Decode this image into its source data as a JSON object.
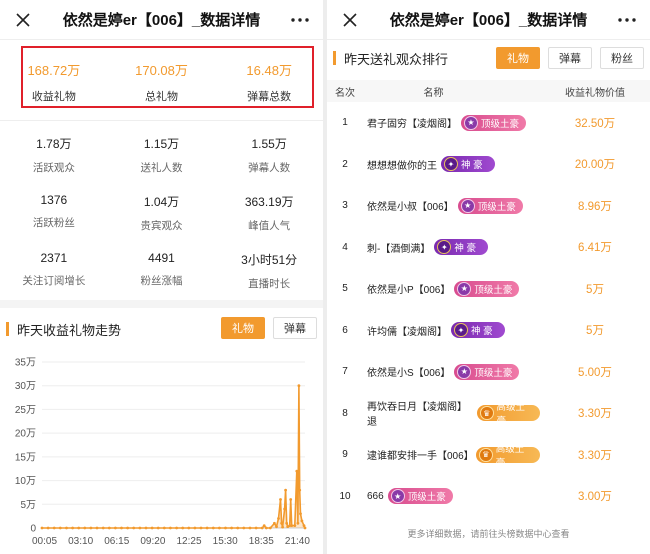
{
  "left": {
    "title": "依然是婷er【006】_数据详情",
    "summary": [
      {
        "value": "168.72万",
        "label": "收益礼物"
      },
      {
        "value": "170.08万",
        "label": "总礼物"
      },
      {
        "value": "16.48万",
        "label": "弹幕总数"
      }
    ],
    "stats": [
      {
        "value": "1.78万",
        "label": "活跃观众"
      },
      {
        "value": "1.15万",
        "label": "送礼人数"
      },
      {
        "value": "1.55万",
        "label": "弹幕人数"
      },
      {
        "value": "1376",
        "label": "活跃粉丝"
      },
      {
        "value": "1.04万",
        "label": "贵宾观众"
      },
      {
        "value": "363.19万",
        "label": "峰值人气"
      },
      {
        "value": "2371",
        "label": "关注订阅增长"
      },
      {
        "value": "4491",
        "label": "粉丝涨幅"
      },
      {
        "value": "3小时51分",
        "label": "直播时长"
      }
    ],
    "trend_title": "昨天收益礼物走势",
    "tab_gift": "礼物",
    "tab_danmu": "弹幕"
  },
  "right": {
    "title": "依然是婷er【006】_数据详情",
    "section_title": "昨天送礼观众排行",
    "tab_gift": "礼物",
    "tab_danmu": "弹幕",
    "tab_fans": "粉丝",
    "col_rank": "名次",
    "col_name": "名称",
    "col_value": "收益礼物价值",
    "rows": [
      {
        "rank": "1",
        "name": "君子固穷【凌烟阁】",
        "badge": "顶级土豪",
        "badge_type": "top",
        "value": "32.50万"
      },
      {
        "rank": "2",
        "name": "想想想做你的王",
        "badge": "神 豪",
        "badge_type": "god",
        "value": "20.00万"
      },
      {
        "rank": "3",
        "name": "依然是小叔【006】",
        "badge": "顶级土豪",
        "badge_type": "top",
        "value": "8.96万"
      },
      {
        "rank": "4",
        "name": "刺-【酒倒满】",
        "badge": "神 豪",
        "badge_type": "god",
        "value": "6.41万"
      },
      {
        "rank": "5",
        "name": "依然是小P【006】",
        "badge": "顶级土豪",
        "badge_type": "top",
        "value": "5万"
      },
      {
        "rank": "6",
        "name": "许均儒【凌烟阁】",
        "badge": "神 豪",
        "badge_type": "god",
        "value": "5万"
      },
      {
        "rank": "7",
        "name": "依然是小S【006】",
        "badge": "顶级土豪",
        "badge_type": "top",
        "value": "5.00万"
      },
      {
        "rank": "8",
        "name": "再饮吞日月【凌烟阁】退",
        "badge": "高级土豪",
        "badge_type": "high",
        "value": "3.30万"
      },
      {
        "rank": "9",
        "name": "逮谁都安排一手【006】",
        "badge": "高级土豪",
        "badge_type": "high",
        "value": "3.30万"
      },
      {
        "rank": "10",
        "name": "666",
        "badge": "顶级土豪",
        "badge_type": "top",
        "value": "3.00万"
      }
    ],
    "footnote": "更多详细数据，请前往头榜数据中心查看"
  },
  "colors": {
    "accent": "#f29a2e",
    "highlight_box": "#e0202a"
  },
  "chart_data": {
    "type": "area",
    "x_ticks": [
      "00:05",
      "03:10",
      "06:15",
      "09:20",
      "12:25",
      "15:30",
      "18:35",
      "21:40"
    ],
    "y_ticks": [
      "0",
      "5万",
      "10万",
      "15万",
      "20万",
      "25万",
      "30万",
      "35万"
    ],
    "ylim": [
      0,
      350000
    ],
    "series": [
      {
        "values": [
          [
            0,
            0
          ],
          [
            30,
            0
          ],
          [
            60,
            0
          ],
          [
            90,
            0
          ],
          [
            120,
            0
          ],
          [
            150,
            0
          ],
          [
            180,
            0
          ],
          [
            210,
            0
          ],
          [
            240,
            0
          ],
          [
            270,
            0
          ],
          [
            300,
            0
          ],
          [
            330,
            0
          ],
          [
            360,
            0
          ],
          [
            390,
            0
          ],
          [
            420,
            0
          ],
          [
            450,
            0
          ],
          [
            480,
            0
          ],
          [
            510,
            0
          ],
          [
            540,
            0
          ],
          [
            570,
            0
          ],
          [
            600,
            0
          ],
          [
            630,
            0
          ],
          [
            660,
            0
          ],
          [
            690,
            0
          ],
          [
            720,
            0
          ],
          [
            750,
            0
          ],
          [
            780,
            0
          ],
          [
            810,
            0
          ],
          [
            840,
            0
          ],
          [
            870,
            0
          ],
          [
            900,
            0
          ],
          [
            930,
            0
          ],
          [
            960,
            0
          ],
          [
            990,
            0
          ],
          [
            1020,
            0
          ],
          [
            1050,
            0
          ],
          [
            1080,
            0
          ],
          [
            1090,
            5000
          ],
          [
            1100,
            0
          ],
          [
            1120,
            0
          ],
          [
            1140,
            10000
          ],
          [
            1150,
            3000
          ],
          [
            1160,
            20000
          ],
          [
            1170,
            60000
          ],
          [
            1175,
            10000
          ],
          [
            1180,
            2000
          ],
          [
            1190,
            40000
          ],
          [
            1195,
            80000
          ],
          [
            1200,
            10000
          ],
          [
            1205,
            3000
          ],
          [
            1215,
            5000
          ],
          [
            1220,
            60000
          ],
          [
            1225,
            5000
          ],
          [
            1240,
            5000
          ],
          [
            1250,
            120000
          ],
          [
            1255,
            10000
          ],
          [
            1260,
            300000
          ],
          [
            1264,
            80000
          ],
          [
            1268,
            30000
          ],
          [
            1275,
            15000
          ],
          [
            1285,
            5000
          ],
          [
            1290,
            0
          ]
        ]
      }
    ]
  }
}
